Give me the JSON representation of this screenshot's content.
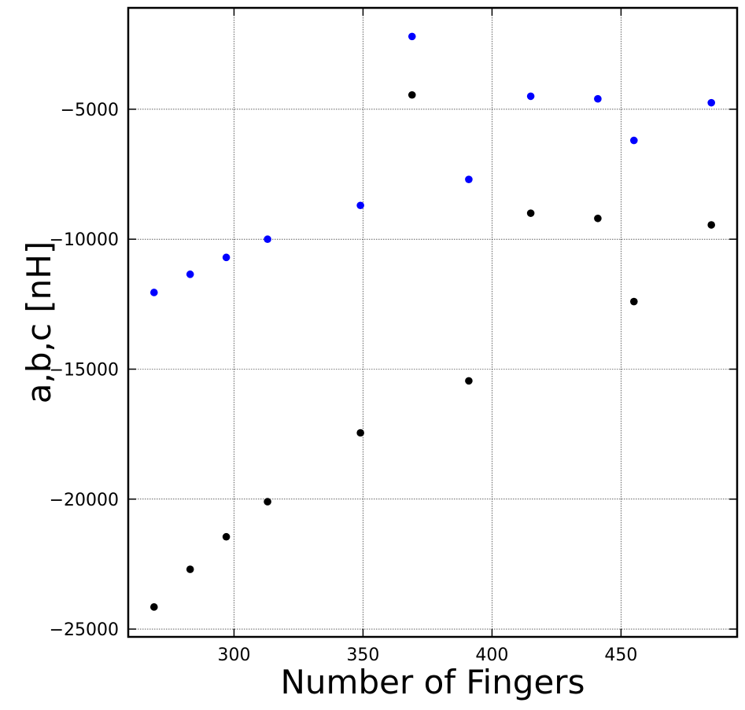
{
  "chart_data": {
    "type": "scatter",
    "xlabel": "Number of Fingers",
    "ylabel": "a,b,c [nH]",
    "xlim": [
      259,
      495
    ],
    "ylim": [
      -25300,
      -1100
    ],
    "xticks": [
      300,
      350,
      400,
      450
    ],
    "xtick_labels": [
      "300",
      "350",
      "400",
      "450"
    ],
    "yticks": [
      -25000,
      -20000,
      -15000,
      -10000,
      -5000
    ],
    "ytick_labels": [
      "−25000",
      "−20000",
      "−15000",
      "−10000",
      "−5000"
    ],
    "grid": true,
    "series": [
      {
        "color": "#0000ff",
        "points": [
          {
            "x": 269,
            "y": -12050
          },
          {
            "x": 283,
            "y": -11350
          },
          {
            "x": 297,
            "y": -10700
          },
          {
            "x": 313,
            "y": -10000
          },
          {
            "x": 349,
            "y": -8700
          },
          {
            "x": 369,
            "y": -2200
          },
          {
            "x": 391,
            "y": -7700
          },
          {
            "x": 415,
            "y": -4500
          },
          {
            "x": 441,
            "y": -4600
          },
          {
            "x": 455,
            "y": -6200
          },
          {
            "x": 485,
            "y": -4750
          }
        ]
      },
      {
        "color": "#000000",
        "points": [
          {
            "x": 269,
            "y": -24150
          },
          {
            "x": 283,
            "y": -22700
          },
          {
            "x": 297,
            "y": -21450
          },
          {
            "x": 313,
            "y": -20100
          },
          {
            "x": 349,
            "y": -17450
          },
          {
            "x": 369,
            "y": -4450
          },
          {
            "x": 391,
            "y": -15450
          },
          {
            "x": 415,
            "y": -9000
          },
          {
            "x": 441,
            "y": -9200
          },
          {
            "x": 455,
            "y": -12400
          },
          {
            "x": 485,
            "y": -9450
          }
        ]
      }
    ]
  }
}
